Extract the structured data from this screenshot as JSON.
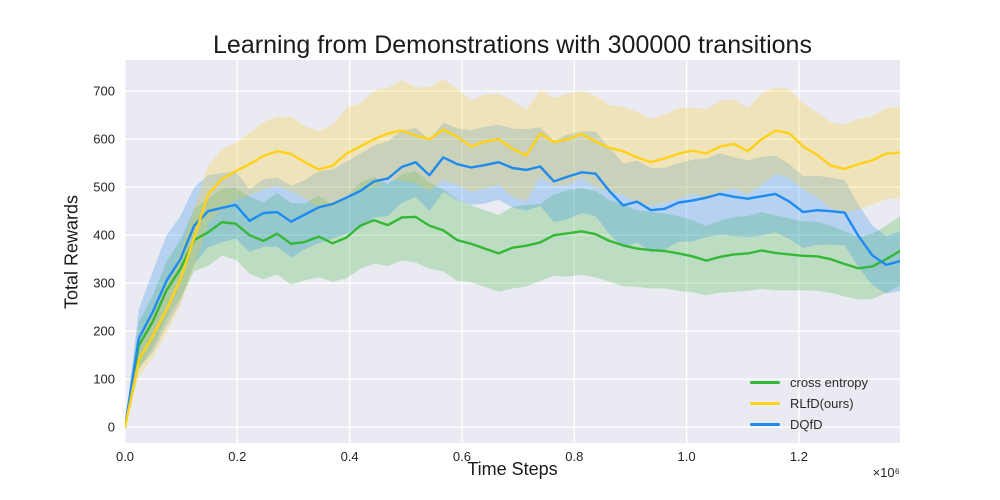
{
  "figure": {
    "title": "Learning from Demonstrations with 300000 transitions",
    "xlabel": "Time Steps",
    "ylabel": "Total Rewards",
    "axis_offset_label": "×10⁶"
  },
  "chart_data": {
    "type": "line",
    "title": "Learning from Demonstrations with 300000 transitions",
    "xlabel": "Time Steps",
    "ylabel": "Total Rewards",
    "x_scale": 1000000,
    "x_scale_label": "×10⁶",
    "xlim": [
      0,
      1.38
    ],
    "ylim": [
      -33,
      765
    ],
    "grid": true,
    "background_color": "#eaeaf2",
    "grid_color": "#ffffff",
    "legend_position": "lower right",
    "x_ticks": {
      "values": [
        0,
        0.2,
        0.4,
        0.6,
        0.8,
        1.0,
        1.2
      ],
      "labels": [
        "0.0",
        "0.2",
        "0.4",
        "0.6",
        "0.8",
        "1.0",
        "1.2"
      ]
    },
    "y_ticks": {
      "values": [
        0,
        100,
        200,
        300,
        400,
        500,
        600,
        700
      ],
      "labels": [
        "0",
        "100",
        "200",
        "300",
        "400",
        "500",
        "600",
        "700"
      ]
    },
    "x": [
      0,
      0.0246,
      0.0493,
      0.0739,
      0.0986,
      0.1232,
      0.1479,
      0.1725,
      0.1971,
      0.2218,
      0.2464,
      0.2711,
      0.2957,
      0.3204,
      0.345,
      0.3696,
      0.3943,
      0.4189,
      0.4436,
      0.4682,
      0.4929,
      0.5175,
      0.5421,
      0.5668,
      0.5914,
      0.6161,
      0.6407,
      0.6654,
      0.69,
      0.7146,
      0.7393,
      0.7639,
      0.7886,
      0.8132,
      0.8379,
      0.8625,
      0.8871,
      0.9118,
      0.9364,
      0.9611,
      0.9857,
      1.0104,
      1.035,
      1.0596,
      1.0843,
      1.1089,
      1.1336,
      1.1582,
      1.1829,
      1.2075,
      1.2321,
      1.2568,
      1.2814,
      1.3061,
      1.3307,
      1.3554,
      1.38
    ],
    "series": [
      {
        "name": "cross entropy",
        "color": "#35b835",
        "values": [
          0,
          170,
          220,
          285,
          330,
          390,
          406,
          427,
          424,
          400,
          388,
          403,
          382,
          386,
          397,
          383,
          395,
          420,
          431,
          421,
          437,
          438,
          420,
          410,
          390,
          382,
          372,
          362,
          374,
          378,
          385,
          400,
          404,
          408,
          402,
          388,
          379,
          372,
          369,
          367,
          362,
          356,
          347,
          355,
          360,
          362,
          368,
          363,
          360,
          357,
          356,
          350,
          340,
          331,
          335,
          350,
          367
        ],
        "band_halfwidth": [
          5,
          50,
          55,
          60,
          60,
          65,
          70,
          70,
          75,
          80,
          80,
          85,
          85,
          80,
          85,
          80,
          85,
          90,
          90,
          85,
          90,
          95,
          90,
          85,
          85,
          80,
          80,
          80,
          85,
          85,
          80,
          85,
          90,
          90,
          90,
          85,
          85,
          80,
          80,
          78,
          78,
          75,
          72,
          75,
          78,
          78,
          80,
          78,
          75,
          72,
          72,
          70,
          68,
          65,
          68,
          70,
          72
        ]
      },
      {
        "name": "RLfD(ours)",
        "color": "#ffd117",
        "values": [
          0,
          140,
          190,
          245,
          308,
          395,
          485,
          517,
          533,
          548,
          565,
          575,
          569,
          552,
          537,
          545,
          570,
          585,
          600,
          612,
          618,
          608,
          600,
          620,
          605,
          585,
          595,
          600,
          580,
          566,
          612,
          594,
          600,
          611,
          595,
          582,
          575,
          562,
          552,
          560,
          570,
          576,
          570,
          585,
          590,
          575,
          600,
          618,
          612,
          585,
          568,
          545,
          538,
          548,
          556,
          570,
          572
        ],
        "band_halfwidth": [
          5,
          35,
          45,
          50,
          55,
          60,
          60,
          62,
          60,
          65,
          70,
          72,
          78,
          75,
          80,
          85,
          95,
          90,
          100,
          95,
          105,
          100,
          108,
          105,
          100,
          95,
          98,
          95,
          100,
          95,
          90,
          92,
          95,
          90,
          95,
          90,
          92,
          95,
          90,
          92,
          95,
          90,
          92,
          95,
          92,
          90,
          95,
          90,
          92,
          90,
          88,
          90,
          92,
          95,
          92,
          95,
          95
        ]
      },
      {
        "name": "DQfD",
        "color": "#1e8bf0",
        "values": [
          0,
          185,
          240,
          305,
          350,
          420,
          450,
          457,
          463,
          430,
          446,
          448,
          428,
          443,
          458,
          465,
          478,
          492,
          512,
          518,
          542,
          552,
          525,
          562,
          548,
          541,
          546,
          552,
          540,
          536,
          543,
          512,
          522,
          531,
          528,
          492,
          462,
          470,
          452,
          455,
          468,
          472,
          478,
          486,
          480,
          476,
          481,
          486,
          470,
          448,
          452,
          450,
          447,
          398,
          358,
          338,
          346
        ],
        "band_halfwidth": [
          5,
          60,
          85,
          95,
          90,
          80,
          75,
          72,
          70,
          65,
          70,
          72,
          75,
          72,
          75,
          72,
          75,
          78,
          75,
          78,
          75,
          72,
          75,
          72,
          75,
          78,
          80,
          78,
          82,
          85,
          82,
          85,
          88,
          85,
          88,
          90,
          88,
          85,
          88,
          85,
          82,
          85,
          82,
          85,
          82,
          80,
          82,
          80,
          78,
          75,
          72,
          70,
          68,
          65,
          62,
          60,
          62
        ]
      }
    ],
    "band_opacity": 0.25,
    "draw_order": [
      0,
      2,
      1
    ]
  }
}
